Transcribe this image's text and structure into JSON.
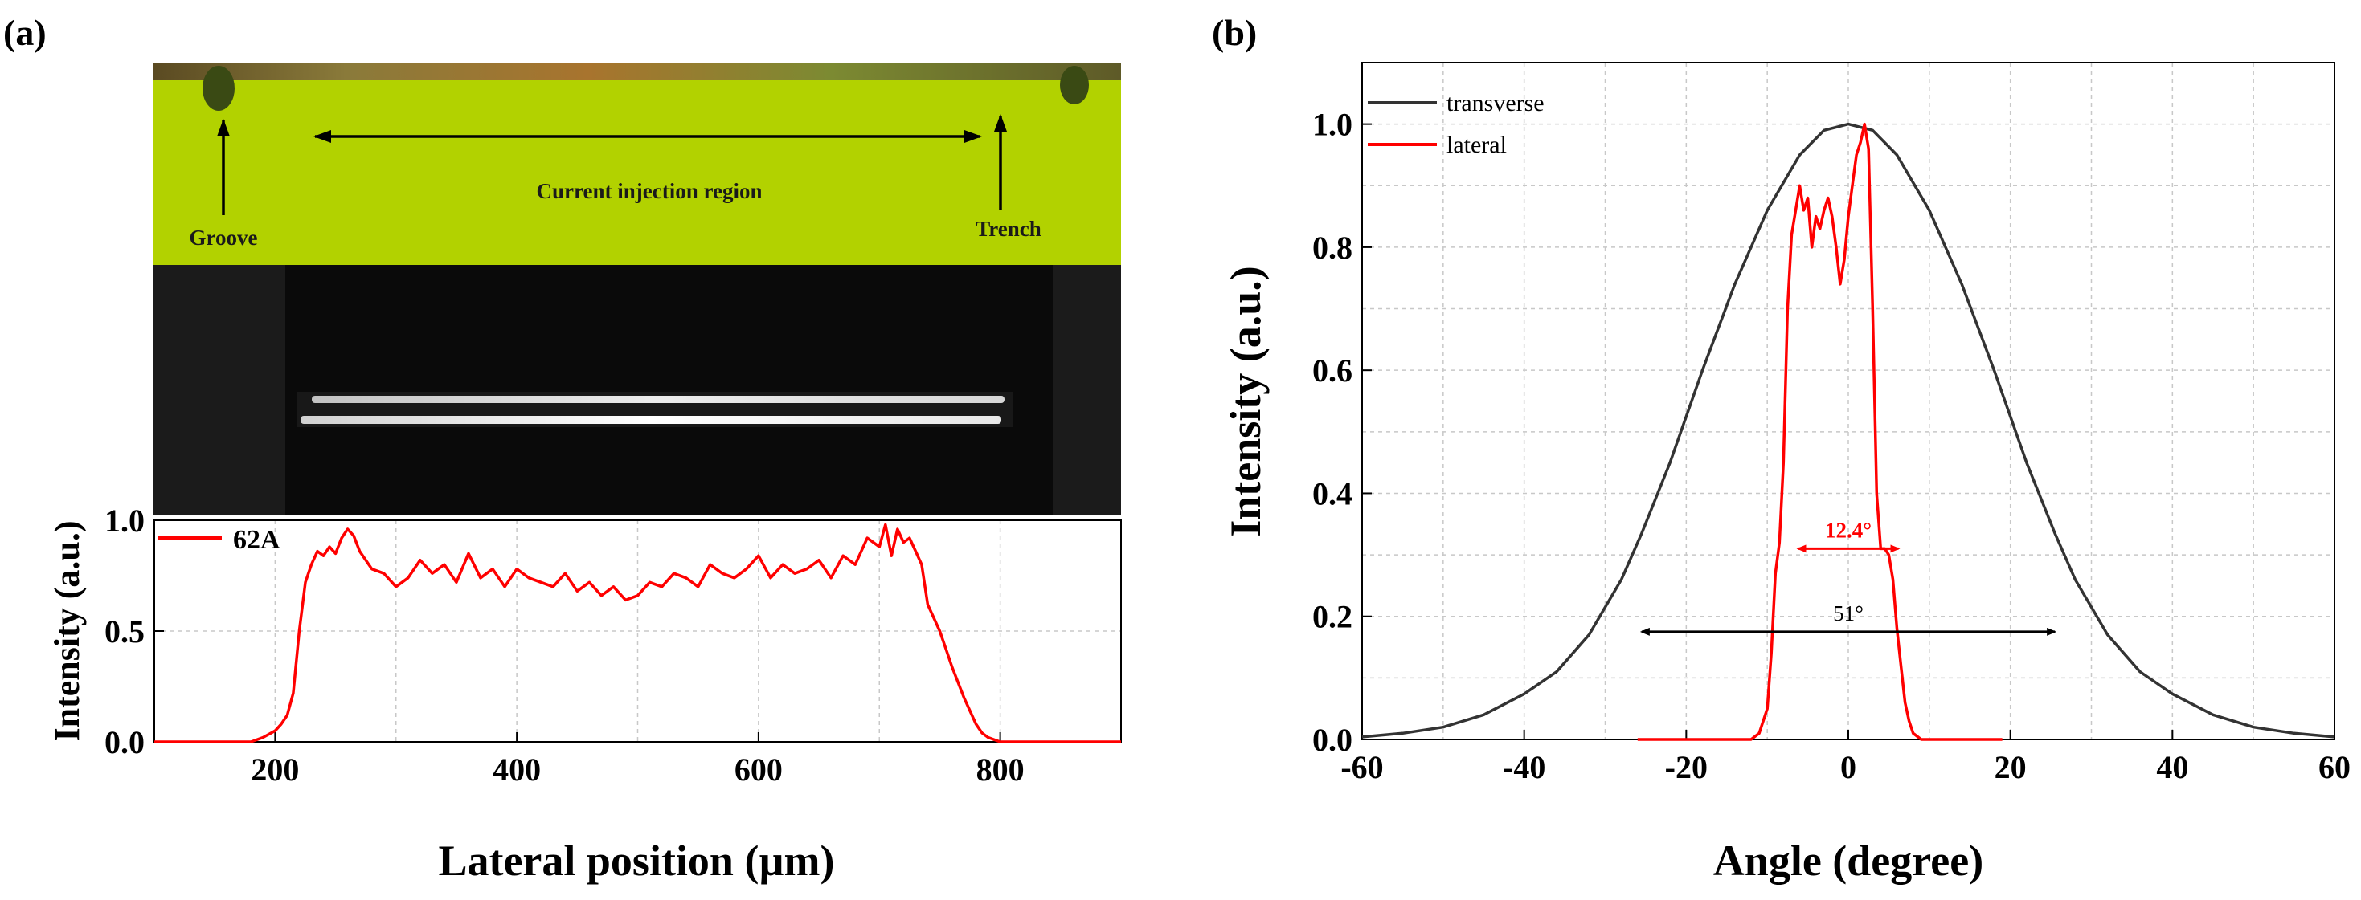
{
  "panels": {
    "a": {
      "label": "(a)",
      "micrograph": {
        "region_label": "Current injection region",
        "left_label": "Groove",
        "right_label": "Trench"
      }
    },
    "b": {
      "label": "(b)"
    }
  },
  "colors": {
    "micrograph_bg": "#b2d200",
    "trace_red": "#ff0000",
    "trace_black": "#333333",
    "grid": "#c8c8c8"
  },
  "chart_data": [
    {
      "type": "line",
      "panel": "a",
      "xlabel": "Lateral position (µm)",
      "ylabel": "Intensity (a.u.)",
      "xlim": [
        100,
        900
      ],
      "ylim": [
        0,
        1
      ],
      "xticks": [
        "200",
        "400",
        "600",
        "800"
      ],
      "yticks": [
        "0.0",
        "0.5",
        "1.0"
      ],
      "grid": true,
      "legend": "top-left",
      "series": [
        {
          "name": "62A",
          "color": "#ff0000",
          "x": [
            100,
            180,
            190,
            200,
            205,
            210,
            215,
            220,
            225,
            230,
            235,
            240,
            245,
            250,
            255,
            260,
            265,
            270,
            275,
            280,
            290,
            300,
            310,
            320,
            330,
            340,
            350,
            360,
            370,
            380,
            390,
            400,
            410,
            420,
            430,
            440,
            450,
            460,
            470,
            480,
            490,
            500,
            510,
            520,
            530,
            540,
            550,
            560,
            570,
            580,
            590,
            600,
            610,
            620,
            630,
            640,
            650,
            660,
            670,
            680,
            690,
            700,
            705,
            710,
            715,
            720,
            725,
            730,
            735,
            740,
            745,
            750,
            755,
            760,
            765,
            770,
            775,
            780,
            785,
            790,
            800,
            900
          ],
          "y": [
            0,
            0,
            0.02,
            0.05,
            0.08,
            0.12,
            0.22,
            0.5,
            0.72,
            0.8,
            0.86,
            0.84,
            0.88,
            0.85,
            0.92,
            0.96,
            0.93,
            0.86,
            0.82,
            0.78,
            0.76,
            0.7,
            0.74,
            0.82,
            0.76,
            0.8,
            0.72,
            0.85,
            0.74,
            0.78,
            0.7,
            0.78,
            0.74,
            0.72,
            0.7,
            0.76,
            0.68,
            0.72,
            0.66,
            0.7,
            0.64,
            0.66,
            0.72,
            0.7,
            0.76,
            0.74,
            0.7,
            0.8,
            0.76,
            0.74,
            0.78,
            0.84,
            0.74,
            0.8,
            0.76,
            0.78,
            0.82,
            0.74,
            0.84,
            0.8,
            0.92,
            0.88,
            0.98,
            0.84,
            0.96,
            0.9,
            0.92,
            0.86,
            0.8,
            0.62,
            0.56,
            0.5,
            0.42,
            0.34,
            0.27,
            0.2,
            0.14,
            0.08,
            0.04,
            0.02,
            0,
            0
          ]
        }
      ]
    },
    {
      "type": "line",
      "panel": "b",
      "xlabel": "Angle (degree)",
      "ylabel": "Intensity (a.u.)",
      "xlim": [
        -60,
        60
      ],
      "ylim": [
        0,
        1.1
      ],
      "xticks": [
        "-60",
        "-40",
        "-20",
        "0",
        "20",
        "40",
        "60"
      ],
      "yticks": [
        "0.0",
        "0.2",
        "0.4",
        "0.6",
        "0.8",
        "1.0"
      ],
      "grid": true,
      "legend": "top-left",
      "series": [
        {
          "name": "transverse",
          "color": "#333333",
          "fwhm_deg": 51,
          "x": [
            -60,
            -55,
            -50,
            -45,
            -40,
            -36,
            -32,
            -28,
            -25.5,
            -22,
            -18,
            -14,
            -10,
            -6,
            -3,
            0,
            3,
            6,
            10,
            14,
            18,
            22,
            25.5,
            28,
            32,
            36,
            40,
            45,
            50,
            55,
            60
          ],
          "y": [
            0.004,
            0.01,
            0.02,
            0.04,
            0.074,
            0.11,
            0.17,
            0.26,
            0.335,
            0.45,
            0.6,
            0.74,
            0.86,
            0.95,
            0.99,
            1.0,
            0.99,
            0.95,
            0.86,
            0.74,
            0.6,
            0.45,
            0.335,
            0.26,
            0.17,
            0.11,
            0.074,
            0.04,
            0.02,
            0.01,
            0.004
          ]
        },
        {
          "name": "lateral",
          "color": "#ff0000",
          "fwhm_deg": 12.4,
          "x": [
            -26,
            -12,
            -11,
            -10,
            -9.5,
            -9,
            -8.5,
            -8,
            -7.5,
            -7,
            -6.5,
            -6,
            -5.5,
            -5,
            -4.5,
            -4,
            -3.5,
            -3,
            -2.5,
            -2,
            -1.5,
            -1,
            -0.5,
            0,
            0.5,
            1,
            1.5,
            2,
            2.5,
            3,
            3.5,
            4,
            4.5,
            5,
            5.5,
            6,
            6.5,
            7,
            7.5,
            8,
            9,
            10,
            19
          ],
          "y": [
            0,
            0,
            0.01,
            0.05,
            0.14,
            0.27,
            0.32,
            0.45,
            0.7,
            0.82,
            0.86,
            0.9,
            0.86,
            0.88,
            0.8,
            0.85,
            0.83,
            0.86,
            0.88,
            0.85,
            0.8,
            0.74,
            0.78,
            0.85,
            0.9,
            0.95,
            0.97,
            1.0,
            0.96,
            0.7,
            0.4,
            0.31,
            0.31,
            0.3,
            0.26,
            0.18,
            0.12,
            0.06,
            0.03,
            0.01,
            0,
            0,
            0
          ]
        }
      ],
      "annotations": [
        {
          "text": "12.4°",
          "color": "#ff0000",
          "x_from": -6.2,
          "x_to": 6.2,
          "y": 0.31
        },
        {
          "text": "51°",
          "color": "#000000",
          "x_from": -25.5,
          "x_to": 25.5,
          "y": 0.175
        }
      ]
    }
  ]
}
